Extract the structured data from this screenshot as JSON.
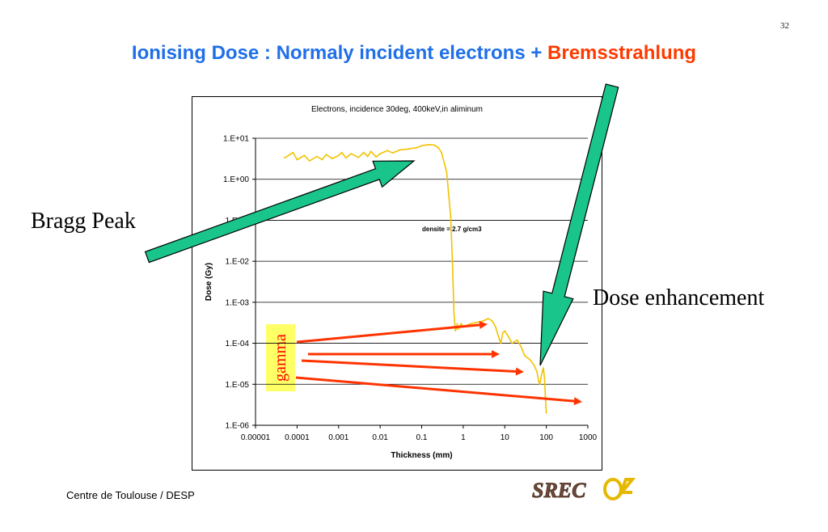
{
  "slide": {
    "page_number": "32",
    "title_main": "Ionising Dose : Normaly incident electrons + ",
    "title_accent": "Bremsstrahlung",
    "footer": "Centre de Toulouse / DESP",
    "logo_text": "SREC04",
    "labels": {
      "bragg_peak": "Bragg Peak",
      "dose_enhancement": "Dose enhancement",
      "gamma": "gamma"
    }
  },
  "colors": {
    "title_blue": "#1f6fe8",
    "title_red": "#ff3a00",
    "curve": "#f2c200",
    "big_arrow_fill": "#19c58a",
    "red_arrow": "#ff3300",
    "gamma_box": "#ffff66"
  },
  "chart_data": {
    "type": "line",
    "title": "Electrons, incidence 30deg, 400keV,in aliminum",
    "xlabel": "Thickness (mm)",
    "ylabel": "Dose (Gy)",
    "x_scale": "log",
    "y_scale": "log",
    "xlim": [
      1e-05,
      1000
    ],
    "ylim": [
      1e-06,
      10
    ],
    "x_ticks": [
      "0.00001",
      "0.0001",
      "0.001",
      "0.01",
      "0.1",
      "1",
      "10",
      "100",
      "1000"
    ],
    "y_ticks": [
      "1.E-06",
      "1.E-05",
      "1.E-04",
      "1.E-03",
      "1.E-02",
      "1.E-01",
      "1.E+00",
      "1.E+01"
    ],
    "grid": "horizontal",
    "annotation": "densite = 2.7 g/cm3",
    "series": [
      {
        "x": [
          5e-05,
          8e-05,
          0.0001,
          0.00015,
          0.0002,
          0.0003,
          0.0004,
          0.0005,
          0.0007,
          0.001,
          0.0012,
          0.0015,
          0.002,
          0.003,
          0.004,
          0.005,
          0.006,
          0.008,
          0.01,
          0.015,
          0.02,
          0.03,
          0.05,
          0.08,
          0.1,
          0.15,
          0.2,
          0.25,
          0.3,
          0.4,
          0.5,
          0.55,
          0.6,
          0.65,
          0.7,
          0.72,
          0.75,
          0.8,
          0.85,
          0.9,
          1.0,
          1.5,
          2,
          3,
          4,
          5,
          6,
          7,
          8,
          9,
          10,
          12,
          15,
          20,
          25,
          30,
          40,
          50,
          60,
          65,
          70,
          75,
          80,
          85,
          90,
          95,
          100
        ],
        "y": [
          3.3,
          4.5,
          3.0,
          3.8,
          2.8,
          3.6,
          3.0,
          4.0,
          3.2,
          3.8,
          4.5,
          3.3,
          4.2,
          3.4,
          4.5,
          3.6,
          4.8,
          3.5,
          4.2,
          5.0,
          4.4,
          5.2,
          5.5,
          6.0,
          6.6,
          7.0,
          6.8,
          6.0,
          4.5,
          1.5,
          0.12,
          0.01,
          0.0005,
          0.0002,
          0.00025,
          0.0003,
          0.00022,
          0.00025,
          0.00028,
          0.0003,
          0.00025,
          0.0003,
          0.00032,
          0.00035,
          0.0004,
          0.00035,
          0.00025,
          0.00015,
          0.0001,
          0.00018,
          0.0002,
          0.00015,
          0.0001,
          0.00012,
          8e-05,
          5e-05,
          4e-05,
          3e-05,
          2e-05,
          1.2e-05,
          1e-05,
          1.5e-05,
          2e-05,
          2.5e-05,
          1.5e-05,
          5e-06,
          2e-06
        ]
      }
    ]
  }
}
